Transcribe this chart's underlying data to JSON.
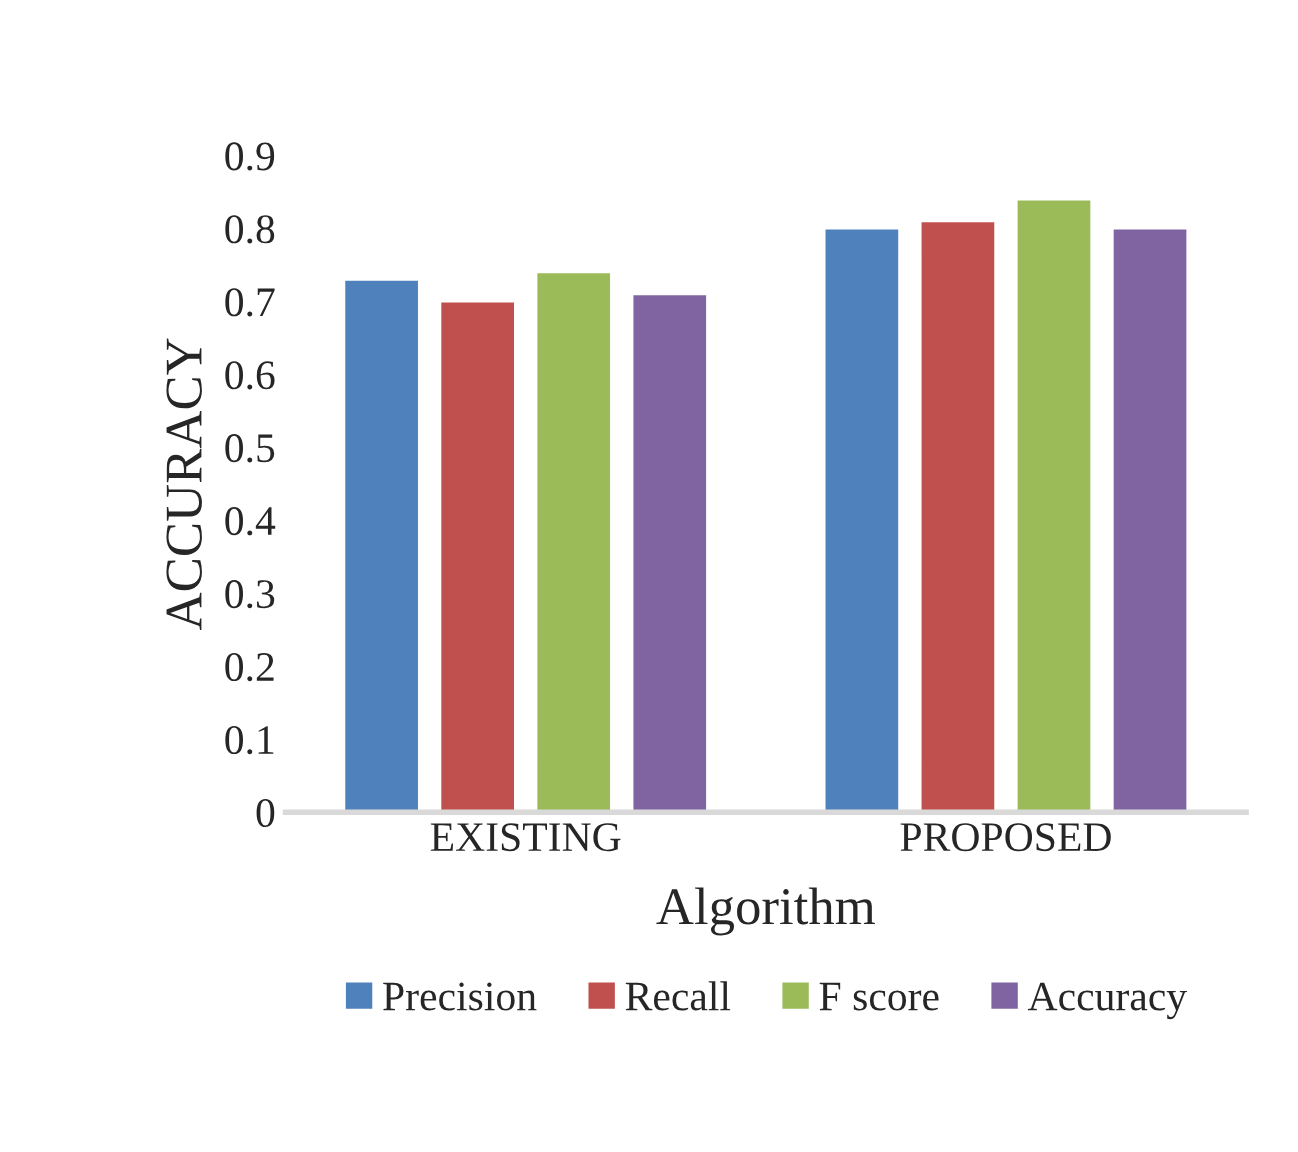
{
  "chart_data": {
    "type": "bar",
    "xlabel": "Algorithm",
    "ylabel": "ACCURACY",
    "categories": [
      "EXISTING",
      "PROPOSED"
    ],
    "series": [
      {
        "name": "Precision",
        "color": "#4f81bd",
        "values": [
          0.73,
          0.8
        ]
      },
      {
        "name": "Recall",
        "color": "#c0504d",
        "values": [
          0.7,
          0.81
        ]
      },
      {
        "name": "F score",
        "color": "#9bbb59",
        "values": [
          0.74,
          0.84
        ]
      },
      {
        "name": "Accuracy",
        "color": "#8064a2",
        "values": [
          0.71,
          0.8
        ]
      }
    ],
    "ylim": [
      0,
      0.9
    ],
    "yticks": [
      {
        "value": 0,
        "label": "0"
      },
      0.1,
      0.2,
      0.3,
      0.4,
      0.5,
      0.6,
      0.7,
      0.8,
      0.9
    ],
    "grid": false,
    "legend": "bottom"
  }
}
